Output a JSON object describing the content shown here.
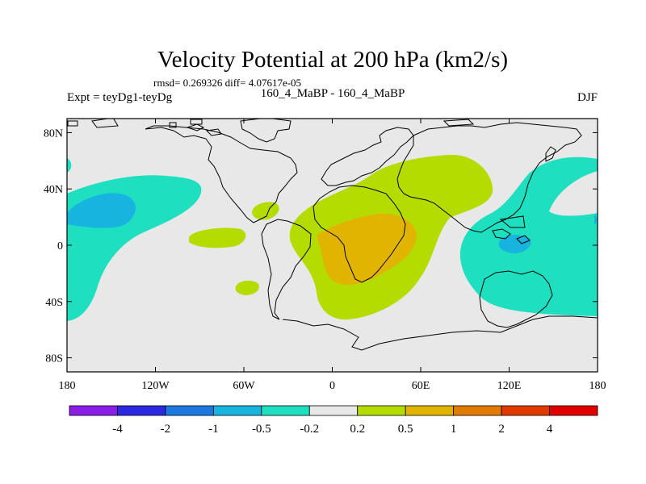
{
  "chart_data": {
    "type": "heatmap",
    "title": "Velocity Potential at 200 hPa (km2/s)",
    "stats_text": "rmsd= 0.269326  diff= 4.07617e-05",
    "left_label": "Expt = teyDg1-teyDg",
    "center_label": "160_4_MaBP - 160_4_MaBP",
    "right_label": "DJF",
    "x_axis": {
      "range": [
        -180,
        180
      ],
      "ticks": [
        -180,
        -120,
        -60,
        0,
        60,
        120,
        180
      ],
      "tick_labels": [
        "180",
        "120W",
        "60W",
        "0",
        "60E",
        "120E",
        "180"
      ]
    },
    "y_axis": {
      "range": [
        -90,
        90
      ],
      "ticks": [
        80,
        40,
        0,
        -40,
        -80
      ],
      "tick_labels": [
        "80N",
        "40N",
        "0",
        "40S",
        "80S"
      ]
    },
    "colorbar": {
      "levels": [
        "-4",
        "-2",
        "-1",
        "-0.5",
        "-0.2",
        "0.2",
        "0.5",
        "1",
        "2",
        "4"
      ],
      "colors": [
        "#8a1ee8",
        "#2a28e0",
        "#1c78e0",
        "#18b4e0",
        "#1ee0c0",
        "#e8e8e8",
        "#b4dc00",
        "#e0b400",
        "#e07a00",
        "#e03a00",
        "#e00000"
      ]
    },
    "fields": [
      {
        "region": "south-atlantic-africa positive anomaly",
        "class": "0.2 to 0.5",
        "color": "#b4dc00"
      },
      {
        "region": "central africa positive core",
        "class": "0.5 to 1",
        "color": "#e0b400"
      },
      {
        "region": "central pacific negative anomaly",
        "class": "-0.5 to -0.2",
        "color": "#1ee0c0"
      },
      {
        "region": "central pacific negative core",
        "class": "-1 to -0.5",
        "color": "#18b4e0"
      },
      {
        "region": "western pacific negative anomaly",
        "class": "-0.5 to -0.2",
        "color": "#1ee0c0"
      },
      {
        "region": "western pacific negative core",
        "class": "-1 to -0.5",
        "color": "#18b4e0"
      }
    ]
  }
}
